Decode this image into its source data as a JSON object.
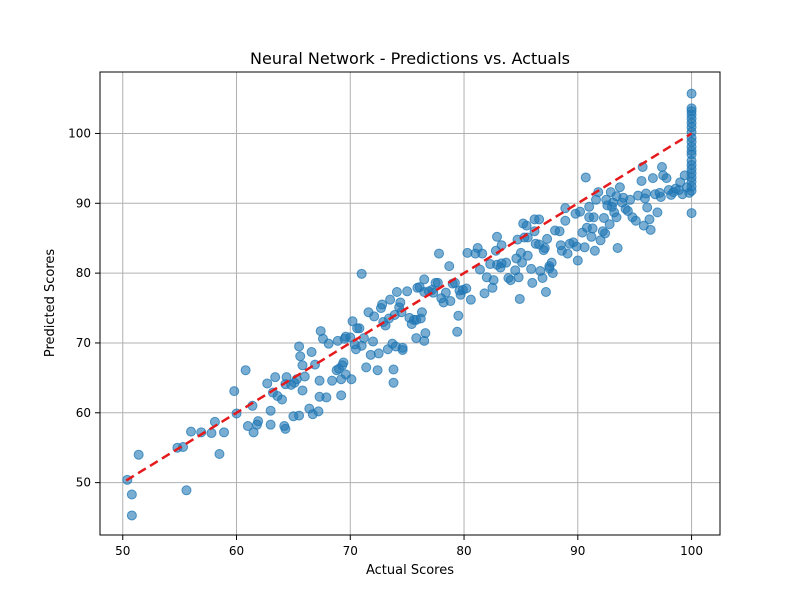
{
  "chart_data": {
    "type": "scatter",
    "title": "Neural Network - Predictions vs. Actuals",
    "xlabel": "Actual Scores",
    "ylabel": "Predicted Scores",
    "xlim": [
      48.0,
      102.5
    ],
    "ylim": [
      42.5,
      108.8
    ],
    "xticks": [
      50,
      60,
      70,
      80,
      90,
      100
    ],
    "yticks": [
      50,
      60,
      70,
      80,
      90,
      100
    ],
    "grid": true,
    "colors": {
      "points": "#1f77b4",
      "reference_line": "#e41a1c",
      "grid": "#b0b0b0"
    },
    "reference_line": {
      "style": "dashed",
      "from": [
        50.3,
        50.3
      ],
      "to": [
        100,
        100
      ]
    },
    "series": [
      {
        "points": [
          [
            50.4,
            50.4
          ],
          [
            50.8,
            48.3
          ],
          [
            50.8,
            45.3
          ],
          [
            51.4,
            54.0
          ],
          [
            54.8,
            55.0
          ],
          [
            55.3,
            55.1
          ],
          [
            55.6,
            48.9
          ],
          [
            56.0,
            57.3
          ],
          [
            56.9,
            57.2
          ],
          [
            57.8,
            57.1
          ],
          [
            58.1,
            58.7
          ],
          [
            58.5,
            54.1
          ],
          [
            58.9,
            57.2
          ],
          [
            59.8,
            63.1
          ],
          [
            60.0,
            59.9
          ],
          [
            60.8,
            66.1
          ],
          [
            61.0,
            58.1
          ],
          [
            61.4,
            61.0
          ],
          [
            61.5,
            57.2
          ],
          [
            61.8,
            58.3
          ],
          [
            61.9,
            58.8
          ],
          [
            62.7,
            64.2
          ],
          [
            63.0,
            60.3
          ],
          [
            63.0,
            58.3
          ],
          [
            63.2,
            62.9
          ],
          [
            63.4,
            65.1
          ],
          [
            63.6,
            62.4
          ],
          [
            64.0,
            61.9
          ],
          [
            64.3,
            64.1
          ],
          [
            64.2,
            58.1
          ],
          [
            64.3,
            57.7
          ],
          [
            64.4,
            65.1
          ],
          [
            64.8,
            64.0
          ],
          [
            65.0,
            59.5
          ],
          [
            65.1,
            64.3
          ],
          [
            65.3,
            64.8
          ],
          [
            65.5,
            59.6
          ],
          [
            65.5,
            69.5
          ],
          [
            65.6,
            68.1
          ],
          [
            65.8,
            66.8
          ],
          [
            65.8,
            63.2
          ],
          [
            66.0,
            65.2
          ],
          [
            66.4,
            60.6
          ],
          [
            66.6,
            68.7
          ],
          [
            66.7,
            59.8
          ],
          [
            66.9,
            66.9
          ],
          [
            67.2,
            60.2
          ],
          [
            67.3,
            62.3
          ],
          [
            67.3,
            64.6
          ],
          [
            67.4,
            71.7
          ],
          [
            67.6,
            70.6
          ],
          [
            67.9,
            62.2
          ],
          [
            68.1,
            69.9
          ],
          [
            68.4,
            64.6
          ],
          [
            68.8,
            66.1
          ],
          [
            68.9,
            70.3
          ],
          [
            69.0,
            66.3
          ],
          [
            69.2,
            62.5
          ],
          [
            69.2,
            64.8
          ],
          [
            69.3,
            66.8
          ],
          [
            69.4,
            67.2
          ],
          [
            69.5,
            70.6
          ],
          [
            69.6,
            70.9
          ],
          [
            69.6,
            65.5
          ],
          [
            70.0,
            70.8
          ],
          [
            70.1,
            64.8
          ],
          [
            70.2,
            73.1
          ],
          [
            70.4,
            69.8
          ],
          [
            70.5,
            69.1
          ],
          [
            70.6,
            72.1
          ],
          [
            70.8,
            72.1
          ],
          [
            71.0,
            79.9
          ],
          [
            71.0,
            69.6
          ],
          [
            71.2,
            70.7
          ],
          [
            71.4,
            66.5
          ],
          [
            71.6,
            74.4
          ],
          [
            71.8,
            68.3
          ],
          [
            72.0,
            70.2
          ],
          [
            72.1,
            73.8
          ],
          [
            72.4,
            66.1
          ],
          [
            72.5,
            68.5
          ],
          [
            72.7,
            75.0
          ],
          [
            72.8,
            75.5
          ],
          [
            72.9,
            73.0
          ],
          [
            73.1,
            72.5
          ],
          [
            73.3,
            69.1
          ],
          [
            73.4,
            73.5
          ],
          [
            73.5,
            76.2
          ],
          [
            73.7,
            69.9
          ],
          [
            73.8,
            66.2
          ],
          [
            73.8,
            64.3
          ],
          [
            73.9,
            74.0
          ],
          [
            74.0,
            69.5
          ],
          [
            74.1,
            77.3
          ],
          [
            74.3,
            75.1
          ],
          [
            74.4,
            75.8
          ],
          [
            74.5,
            74.4
          ],
          [
            74.6,
            69.3
          ],
          [
            74.6,
            69.0
          ],
          [
            75.0,
            77.4
          ],
          [
            75.2,
            73.6
          ],
          [
            75.4,
            72.7
          ],
          [
            75.6,
            73.3
          ],
          [
            75.8,
            73.3
          ],
          [
            75.8,
            70.7
          ],
          [
            75.9,
            77.9
          ],
          [
            76.1,
            78.0
          ],
          [
            76.2,
            73.5
          ],
          [
            76.3,
            74.4
          ],
          [
            76.5,
            79.1
          ],
          [
            76.5,
            77.3
          ],
          [
            76.5,
            70.3
          ],
          [
            76.6,
            71.4
          ],
          [
            76.9,
            77.4
          ],
          [
            77.2,
            77.6
          ],
          [
            77.3,
            77.2
          ],
          [
            77.5,
            78.6
          ],
          [
            77.7,
            78.6
          ],
          [
            77.8,
            82.8
          ],
          [
            78.0,
            76.4
          ],
          [
            78.2,
            75.8
          ],
          [
            78.4,
            77.2
          ],
          [
            78.7,
            81.0
          ],
          [
            78.8,
            76.0
          ],
          [
            79.0,
            78.5
          ],
          [
            79.2,
            78.6
          ],
          [
            79.4,
            71.6
          ],
          [
            79.5,
            73.9
          ],
          [
            79.6,
            77.5
          ],
          [
            79.7,
            76.9
          ],
          [
            79.9,
            77.6
          ],
          [
            80.2,
            77.8
          ],
          [
            80.3,
            82.9
          ],
          [
            80.6,
            76.2
          ],
          [
            81.0,
            82.8
          ],
          [
            81.2,
            83.6
          ],
          [
            81.4,
            80.5
          ],
          [
            81.6,
            82.8
          ],
          [
            81.8,
            77.1
          ],
          [
            82.0,
            79.4
          ],
          [
            82.3,
            81.3
          ],
          [
            82.5,
            77.9
          ],
          [
            82.6,
            79.0
          ],
          [
            82.8,
            83.2
          ],
          [
            82.9,
            85.2
          ],
          [
            82.9,
            81.2
          ],
          [
            83.2,
            80.8
          ],
          [
            83.3,
            84.0
          ],
          [
            83.3,
            81.4
          ],
          [
            83.7,
            81.5
          ],
          [
            83.9,
            79.3
          ],
          [
            84.1,
            79.0
          ],
          [
            84.5,
            80.4
          ],
          [
            84.6,
            82.1
          ],
          [
            84.7,
            84.8
          ],
          [
            84.8,
            79.4
          ],
          [
            84.9,
            76.3
          ],
          [
            85.0,
            82.9
          ],
          [
            85.1,
            81.5
          ],
          [
            85.2,
            87.1
          ],
          [
            85.3,
            85.1
          ],
          [
            85.5,
            86.8
          ],
          [
            85.6,
            82.5
          ],
          [
            85.6,
            85.1
          ],
          [
            85.9,
            80.6
          ],
          [
            86.0,
            78.6
          ],
          [
            86.2,
            86.0
          ],
          [
            86.2,
            87.7
          ],
          [
            86.3,
            84.2
          ],
          [
            86.6,
            87.7
          ],
          [
            86.6,
            84.1
          ],
          [
            86.7,
            80.3
          ],
          [
            86.9,
            79.3
          ],
          [
            87.0,
            83.3
          ],
          [
            87.1,
            83.6
          ],
          [
            87.2,
            77.3
          ],
          [
            87.3,
            84.9
          ],
          [
            87.5,
            80.7
          ],
          [
            87.5,
            81.0
          ],
          [
            87.7,
            81.5
          ],
          [
            87.8,
            80.0
          ],
          [
            88.0,
            86.1
          ],
          [
            88.4,
            86.0
          ],
          [
            88.5,
            84.0
          ],
          [
            88.6,
            83.2
          ],
          [
            88.9,
            89.3
          ],
          [
            88.9,
            87.5
          ],
          [
            89.1,
            82.8
          ],
          [
            89.3,
            84.2
          ],
          [
            89.6,
            84.4
          ],
          [
            89.8,
            88.5
          ],
          [
            89.9,
            83.8
          ],
          [
            90.0,
            81.8
          ],
          [
            90.2,
            88.8
          ],
          [
            90.4,
            85.8
          ],
          [
            90.6,
            83.7
          ],
          [
            90.7,
            93.7
          ],
          [
            90.8,
            86.5
          ],
          [
            91.0,
            89.5
          ],
          [
            91.0,
            88.0
          ],
          [
            91.2,
            85.2
          ],
          [
            91.3,
            86.4
          ],
          [
            91.4,
            88.0
          ],
          [
            91.5,
            83.2
          ],
          [
            91.6,
            90.5
          ],
          [
            91.8,
            91.6
          ],
          [
            92.0,
            84.7
          ],
          [
            92.2,
            86.0
          ],
          [
            92.3,
            87.9
          ],
          [
            92.4,
            85.7
          ],
          [
            92.5,
            90.5
          ],
          [
            92.6,
            89.7
          ],
          [
            92.8,
            87.0
          ],
          [
            92.9,
            91.6
          ],
          [
            93.0,
            89.5
          ],
          [
            93.1,
            90.1
          ],
          [
            93.2,
            88.7
          ],
          [
            93.4,
            91.0
          ],
          [
            93.4,
            88.0
          ],
          [
            93.5,
            83.6
          ],
          [
            93.7,
            92.3
          ],
          [
            93.9,
            90.1
          ],
          [
            94.0,
            90.8
          ],
          [
            94.2,
            89.2
          ],
          [
            94.4,
            88.9
          ],
          [
            94.6,
            90.5
          ],
          [
            94.8,
            88.0
          ],
          [
            95.1,
            87.5
          ],
          [
            95.3,
            91.1
          ],
          [
            95.6,
            93.2
          ],
          [
            95.7,
            95.2
          ],
          [
            95.8,
            86.8
          ],
          [
            95.9,
            90.7
          ],
          [
            96.0,
            91.4
          ],
          [
            96.1,
            89.4
          ],
          [
            96.3,
            87.7
          ],
          [
            96.4,
            86.2
          ],
          [
            96.6,
            93.6
          ],
          [
            96.8,
            91.3
          ],
          [
            97.0,
            88.7
          ],
          [
            97.2,
            91.5
          ],
          [
            97.3,
            90.9
          ],
          [
            97.4,
            95.2
          ],
          [
            97.5,
            94.0
          ],
          [
            97.8,
            93.6
          ],
          [
            98.0,
            91.9
          ],
          [
            98.2,
            91.2
          ],
          [
            98.4,
            91.6
          ],
          [
            98.6,
            92.1
          ],
          [
            98.9,
            91.9
          ],
          [
            99.0,
            93.0
          ],
          [
            99.2,
            91.3
          ],
          [
            99.4,
            94.0
          ],
          [
            99.6,
            92.3
          ],
          [
            99.8,
            91.5
          ],
          [
            100,
            88.6
          ],
          [
            100,
            91.8
          ],
          [
            100,
            92.4
          ],
          [
            100,
            93.1
          ],
          [
            100,
            93.7
          ],
          [
            100,
            94.3
          ],
          [
            100,
            94.9
          ],
          [
            100,
            95.5
          ],
          [
            100,
            96.1
          ],
          [
            100,
            97.0
          ],
          [
            100,
            97.5
          ],
          [
            100,
            98.1
          ],
          [
            100,
            98.8
          ],
          [
            100,
            99.4
          ],
          [
            100,
            100.2
          ],
          [
            100,
            100.9
          ],
          [
            100,
            101.5
          ],
          [
            100,
            102.1
          ],
          [
            100,
            102.7
          ],
          [
            100,
            103.2
          ],
          [
            100,
            103.6
          ],
          [
            100,
            105.7
          ]
        ]
      }
    ]
  }
}
